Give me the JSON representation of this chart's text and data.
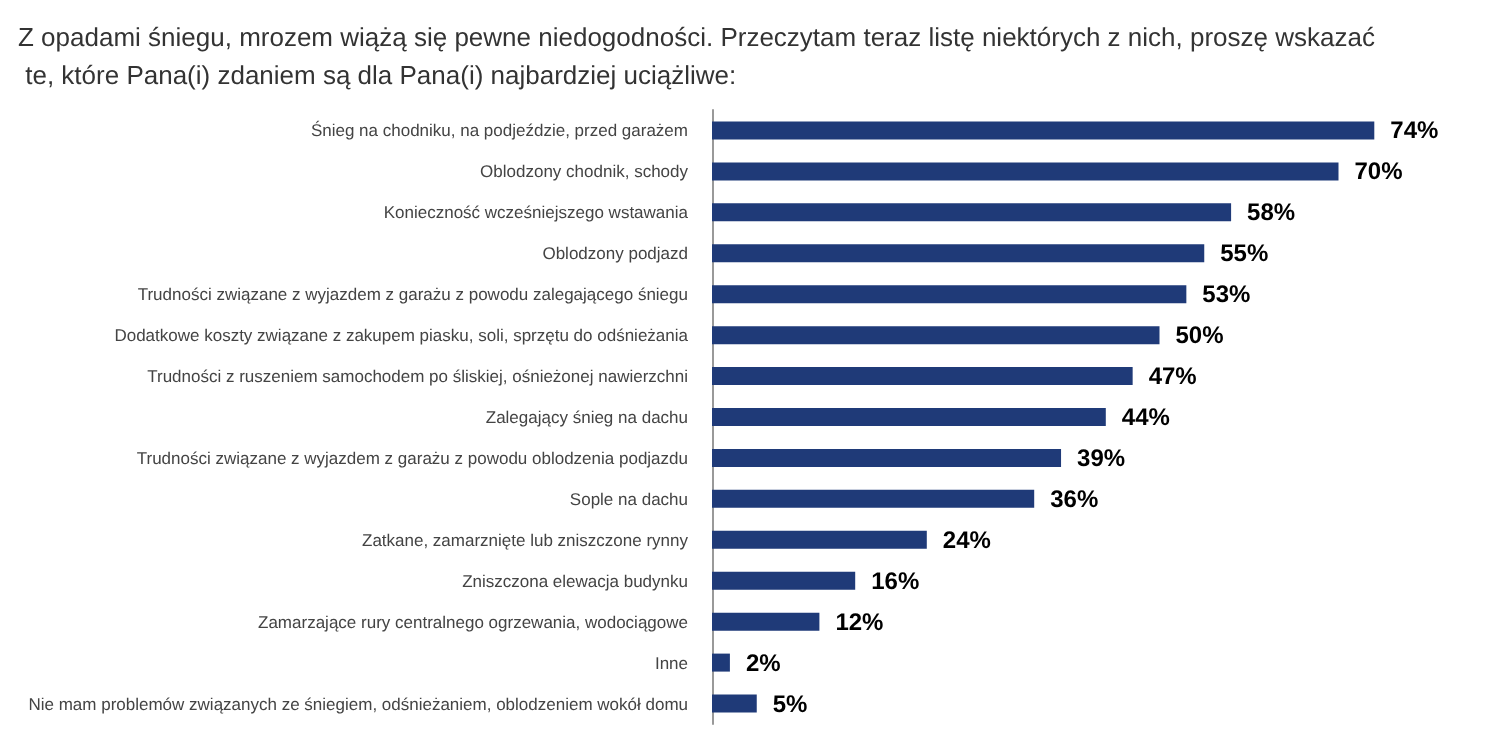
{
  "chart_data": {
    "type": "bar",
    "orientation": "horizontal",
    "title": "Z opadami śniegu, mrozem wiążą się pewne niedogodności. Przeczytam teraz listę niektórych z nich, proszę wskazać te, które Pana(i) zdaniem są dla Pana(i) najbardziej uciążliwe:",
    "categories": [
      "Śnieg na chodniku, na podjeździe, przed garażem",
      "Oblodzony chodnik, schody",
      "Konieczność wcześniejszego wstawania",
      "Oblodzony podjazd",
      "Trudności związane z wyjazdem z garażu z powodu zalegającego śniegu",
      "Dodatkowe koszty związane z zakupem piasku, soli, sprzętu do odśnieżania",
      "Trudności z ruszeniem samochodem po śliskiej, ośnieżonej nawierzchni",
      "Zalegający śnieg na dachu",
      "Trudności związane z wyjazdem z garażu z powodu oblodzenia podjazdu",
      "Sople na dachu",
      "Zatkane, zamarznięte lub zniszczone rynny",
      "Zniszczona elewacja budynku",
      "Zamarzające rury centralnego ogrzewania, wodociągowe",
      "Inne",
      "Nie mam problemów związanych ze śniegiem, odśnieżaniem, oblodzeniem wokół domu"
    ],
    "values": [
      74,
      70,
      58,
      55,
      53,
      50,
      47,
      44,
      39,
      36,
      24,
      16,
      12,
      2,
      5
    ],
    "value_labels": [
      "74%",
      "70%",
      "58%",
      "55%",
      "53%",
      "50%",
      "47%",
      "44%",
      "39%",
      "36%",
      "24%",
      "16%",
      "12%",
      "2%",
      "5%"
    ],
    "color": "#1f3a78"
  }
}
